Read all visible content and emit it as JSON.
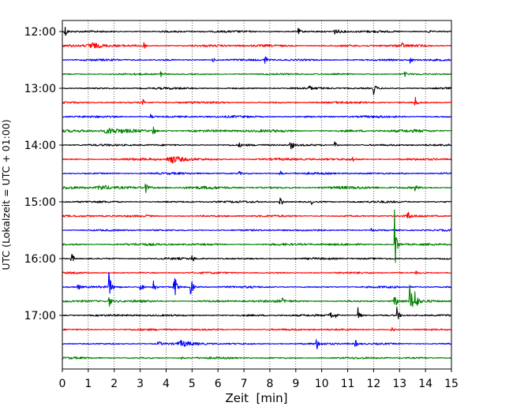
{
  "chart_data": {
    "type": "line",
    "title": "",
    "xlabel": "Zeit  [min]",
    "ylabel": "UTC (Lokalzeit = UTC + 01:00)",
    "xlim": [
      0,
      15
    ],
    "x_ticks": [
      "0",
      "1",
      "2",
      "3",
      "4",
      "5",
      "6",
      "7",
      "8",
      "9",
      "10",
      "11",
      "12",
      "13",
      "14",
      "15"
    ],
    "y_ticks": [
      {
        "label": "12:00",
        "row": 0
      },
      {
        "label": "13:00",
        "row": 4
      },
      {
        "label": "14:00",
        "row": 8
      },
      {
        "label": "15:00",
        "row": 12
      },
      {
        "label": "16:00",
        "row": 16
      },
      {
        "label": "17:00",
        "row": 20
      }
    ],
    "row_interval_minutes": 15,
    "grid": "vertical-dotted",
    "colors": [
      "#000000",
      "#ff0000",
      "#0000ff",
      "#008000"
    ],
    "series": [
      {
        "start": "12:00",
        "color": "#000000",
        "noise": 1.0,
        "events": [
          {
            "x": 0.1,
            "amp": 9
          },
          {
            "x": 9.1,
            "amp": 4
          },
          {
            "x": 10.5,
            "amp": 3,
            "w": 0.3
          },
          {
            "x": 14.1,
            "amp": 2.5
          }
        ]
      },
      {
        "start": "12:15",
        "color": "#ff0000",
        "noise": 1.2,
        "events": [
          {
            "x": 1.1,
            "amp": 4,
            "w": 0.5
          },
          {
            "x": 3.1,
            "amp": 8
          },
          {
            "x": 13.1,
            "amp": 3
          }
        ]
      },
      {
        "start": "12:30",
        "color": "#0000ff",
        "noise": 1.0,
        "events": [
          {
            "x": 5.8,
            "amp": 3
          },
          {
            "x": 7.8,
            "amp": 8
          },
          {
            "x": 13.4,
            "amp": 5
          }
        ]
      },
      {
        "start": "12:45",
        "color": "#008000",
        "noise": 0.9,
        "events": [
          {
            "x": 3.8,
            "amp": 6
          },
          {
            "x": 13.2,
            "amp": 3
          }
        ]
      },
      {
        "start": "13:00",
        "color": "#000000",
        "noise": 1.0,
        "events": [
          {
            "x": 9.5,
            "amp": 4
          },
          {
            "x": 12.0,
            "amp": 9
          }
        ]
      },
      {
        "start": "13:15",
        "color": "#ff0000",
        "noise": 1.0,
        "events": [
          {
            "x": 3.1,
            "amp": 4
          },
          {
            "x": 13.6,
            "amp": 8
          }
        ]
      },
      {
        "start": "13:30",
        "color": "#0000ff",
        "noise": 1.1,
        "events": [
          {
            "x": 3.4,
            "amp": 4
          }
        ]
      },
      {
        "start": "13:45",
        "color": "#008000",
        "noise": 1.4,
        "events": [
          {
            "x": 1.8,
            "amp": 3,
            "w": 0.8
          },
          {
            "x": 3.5,
            "amp": 7
          }
        ]
      },
      {
        "start": "14:00",
        "color": "#000000",
        "noise": 1.0,
        "events": [
          {
            "x": 6.8,
            "amp": 3
          },
          {
            "x": 8.8,
            "amp": 9
          },
          {
            "x": 10.5,
            "amp": 4
          }
        ]
      },
      {
        "start": "14:15",
        "color": "#ff0000",
        "noise": 1.2,
        "events": [
          {
            "x": 4.2,
            "amp": 5,
            "w": 0.6
          },
          {
            "x": 11.2,
            "amp": 3
          }
        ]
      },
      {
        "start": "14:30",
        "color": "#0000ff",
        "noise": 1.0,
        "events": [
          {
            "x": 6.8,
            "amp": 3
          },
          {
            "x": 8.4,
            "amp": 5
          },
          {
            "x": 13.1,
            "amp": 3
          }
        ]
      },
      {
        "start": "14:45",
        "color": "#008000",
        "noise": 1.4,
        "events": [
          {
            "x": 1.5,
            "amp": 3,
            "w": 0.8
          },
          {
            "x": 3.2,
            "amp": 7
          },
          {
            "x": 13.6,
            "amp": 4
          }
        ]
      },
      {
        "start": "15:00",
        "color": "#000000",
        "noise": 1.0,
        "events": [
          {
            "x": 8.4,
            "amp": 8
          },
          {
            "x": 9.6,
            "amp": 3
          }
        ]
      },
      {
        "start": "15:15",
        "color": "#ff0000",
        "noise": 1.0,
        "events": [
          {
            "x": 3.2,
            "amp": 3
          },
          {
            "x": 13.3,
            "amp": 8
          }
        ]
      },
      {
        "start": "15:30",
        "color": "#0000ff",
        "noise": 0.9,
        "events": [
          {
            "x": 9.7,
            "amp": 3
          },
          {
            "x": 11.9,
            "amp": 3
          }
        ]
      },
      {
        "start": "15:45",
        "color": "#008000",
        "noise": 1.2,
        "events": [
          {
            "x": 12.8,
            "amp": 50
          }
        ]
      },
      {
        "start": "16:00",
        "color": "#000000",
        "noise": 1.0,
        "events": [
          {
            "x": 0.35,
            "amp": 9
          },
          {
            "x": 5.0,
            "amp": 5
          }
        ]
      },
      {
        "start": "16:15",
        "color": "#ff0000",
        "noise": 0.9,
        "events": [
          {
            "x": 13.6,
            "amp": 3
          }
        ]
      },
      {
        "start": "16:30",
        "color": "#0000ff",
        "noise": 1.0,
        "events": [
          {
            "x": 0.6,
            "amp": 5
          },
          {
            "x": 1.8,
            "amp": 20
          },
          {
            "x": 3.0,
            "amp": 12
          },
          {
            "x": 3.5,
            "amp": 16
          },
          {
            "x": 4.3,
            "amp": 28
          },
          {
            "x": 4.95,
            "amp": 14
          }
        ]
      },
      {
        "start": "16:45",
        "color": "#008000",
        "noise": 1.2,
        "events": [
          {
            "x": 1.8,
            "amp": 8
          },
          {
            "x": 8.5,
            "amp": 4
          },
          {
            "x": 12.8,
            "amp": 14
          },
          {
            "x": 13.4,
            "amp": 30
          },
          {
            "x": 13.6,
            "amp": 18
          }
        ]
      },
      {
        "start": "17:00",
        "color": "#000000",
        "noise": 1.0,
        "events": [
          {
            "x": 10.3,
            "amp": 10
          },
          {
            "x": 10.55,
            "amp": 4
          },
          {
            "x": 11.4,
            "amp": 12
          },
          {
            "x": 12.9,
            "amp": 10
          }
        ]
      },
      {
        "start": "17:15",
        "color": "#ff0000",
        "noise": 1.0,
        "events": [
          {
            "x": 12.7,
            "amp": 4
          }
        ]
      },
      {
        "start": "17:30",
        "color": "#0000ff",
        "noise": 1.0,
        "events": [
          {
            "x": 3.7,
            "amp": 5
          },
          {
            "x": 4.6,
            "amp": 3,
            "w": 0.6
          },
          {
            "x": 9.8,
            "amp": 8
          },
          {
            "x": 11.3,
            "amp": 5
          }
        ]
      },
      {
        "start": "17:45",
        "color": "#008000",
        "noise": 1.0,
        "events": [
          {
            "x": 4.6,
            "amp": 2
          }
        ]
      }
    ]
  }
}
